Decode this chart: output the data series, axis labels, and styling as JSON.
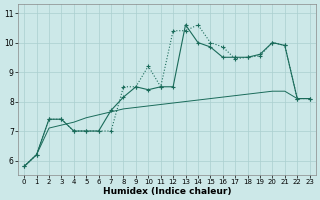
{
  "xlabel": "Humidex (Indice chaleur)",
  "bg_color": "#cce8e8",
  "grid_color": "#aacfcf",
  "line_color": "#1a6b5a",
  "xlim": [
    -0.5,
    23.5
  ],
  "ylim": [
    5.5,
    11.3
  ],
  "xticks": [
    0,
    1,
    2,
    3,
    4,
    5,
    6,
    7,
    8,
    9,
    10,
    11,
    12,
    13,
    14,
    15,
    16,
    17,
    18,
    19,
    20,
    21,
    22,
    23
  ],
  "yticks": [
    6,
    7,
    8,
    9,
    10,
    11
  ],
  "line1_x": [
    0,
    1,
    2,
    3,
    4,
    5,
    6,
    7,
    8,
    9,
    10,
    11,
    12,
    13,
    14,
    15,
    16,
    17,
    18,
    19,
    20,
    21,
    22,
    23
  ],
  "line1_y": [
    5.8,
    6.2,
    7.4,
    7.4,
    7.0,
    7.0,
    7.0,
    7.0,
    8.5,
    8.5,
    9.2,
    8.5,
    10.4,
    10.4,
    10.6,
    10.0,
    9.85,
    9.45,
    9.5,
    9.55,
    10.0,
    9.9,
    8.1,
    8.1
  ],
  "line2_x": [
    0,
    1,
    2,
    3,
    4,
    5,
    6,
    7,
    8,
    9,
    10,
    11,
    12,
    13,
    14,
    15,
    16,
    17,
    18,
    19,
    20,
    21,
    22,
    23
  ],
  "line2_y": [
    5.8,
    6.2,
    7.4,
    7.4,
    7.0,
    7.0,
    7.0,
    7.7,
    8.15,
    8.5,
    8.4,
    8.5,
    8.5,
    10.6,
    10.0,
    9.85,
    9.5,
    9.5,
    9.5,
    9.6,
    10.0,
    9.9,
    8.1,
    8.1
  ],
  "line3_x": [
    0,
    1,
    2,
    3,
    4,
    5,
    6,
    7,
    8,
    9,
    10,
    11,
    12,
    13,
    14,
    15,
    16,
    17,
    18,
    19,
    20,
    21,
    22,
    23
  ],
  "line3_y": [
    5.8,
    6.2,
    7.1,
    7.2,
    7.3,
    7.45,
    7.55,
    7.65,
    7.75,
    7.8,
    7.85,
    7.9,
    7.95,
    8.0,
    8.05,
    8.1,
    8.15,
    8.2,
    8.25,
    8.3,
    8.35,
    8.35,
    8.1,
    8.1
  ]
}
